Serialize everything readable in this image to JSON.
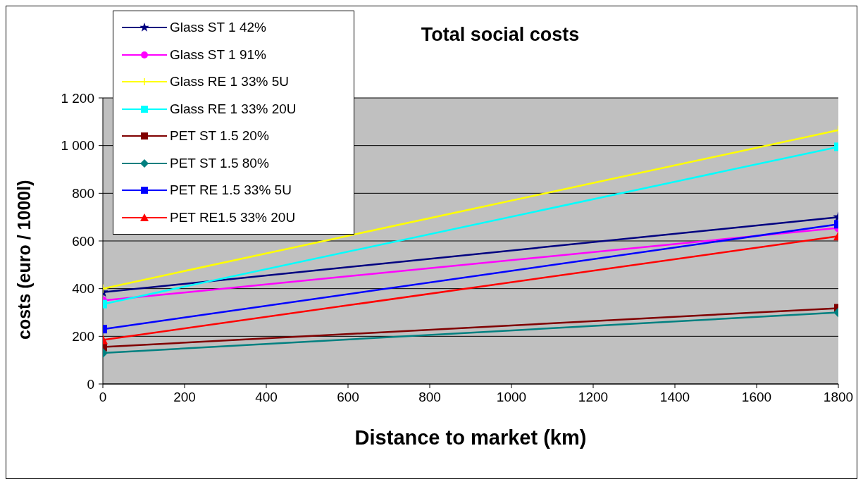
{
  "chart_data": {
    "type": "line",
    "title": "Total social costs",
    "xlabel": "Distance to market (km)",
    "ylabel": "costs (euro / 1000l)",
    "x": [
      0,
      1800
    ],
    "series": [
      {
        "name": "Glass ST 1 42%",
        "color": "#000080",
        "marker": "star",
        "values": [
          385,
          700
        ]
      },
      {
        "name": "Glass ST 1 91%",
        "color": "#ff00ff",
        "marker": "circle",
        "values": [
          350,
          655
        ]
      },
      {
        "name": "Glass RE 1 33% 5U",
        "color": "#ffff00",
        "marker": "cross",
        "values": [
          400,
          1065
        ]
      },
      {
        "name": "Glass RE 1 33% 20U",
        "color": "#00ffff",
        "marker": "square",
        "values": [
          335,
          995
        ]
      },
      {
        "name": "PET ST 1.5 20%",
        "color": "#800000",
        "marker": "square",
        "values": [
          155,
          318
        ]
      },
      {
        "name": "PET ST 1.5 80%",
        "color": "#008080",
        "marker": "diamond",
        "values": [
          130,
          300
        ]
      },
      {
        "name": "PET RE 1.5 33% 5U",
        "color": "#0000ff",
        "marker": "square",
        "values": [
          230,
          670
        ]
      },
      {
        "name": "PET RE1.5 33% 20U",
        "color": "#ff0000",
        "marker": "triangle",
        "values": [
          185,
          620
        ]
      }
    ],
    "xlim": [
      0,
      1800
    ],
    "xticks": [
      0,
      200,
      400,
      600,
      800,
      1000,
      1200,
      1400,
      1600,
      1800
    ],
    "ylim": [
      0,
      1200
    ],
    "yticks": [
      0,
      200,
      400,
      600,
      800,
      {
        "value": 1000,
        "label": "1 000"
      },
      {
        "value": 1200,
        "label": "1 200"
      }
    ],
    "grid": "y",
    "legend": "top left",
    "line_style": "solid"
  }
}
